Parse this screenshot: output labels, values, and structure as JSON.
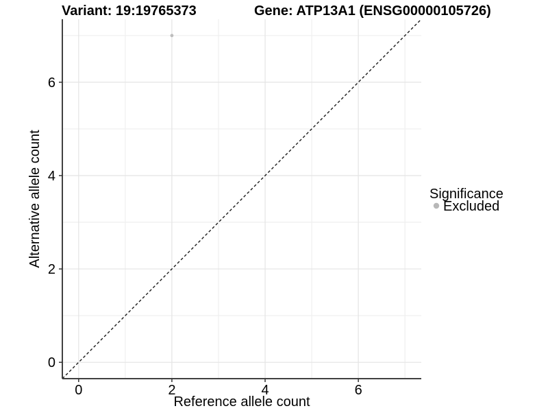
{
  "chart_data": {
    "type": "scatter",
    "titles": {
      "left": "Variant: 19:19765373",
      "right": "Gene: ATP13A1 (ENSG00000105726)"
    },
    "xlabel": "Reference allele count",
    "ylabel": "Alternative allele count",
    "xlim": [
      -0.35,
      7.35
    ],
    "ylim": [
      -0.35,
      7.35
    ],
    "x_ticks": [
      0,
      2,
      4,
      6
    ],
    "y_ticks": [
      0,
      2,
      4,
      6
    ],
    "x_minor_ticks": [
      1,
      3,
      5,
      7
    ],
    "y_minor_ticks": [
      1,
      3,
      5,
      7
    ],
    "grid": "major+minor",
    "points": [
      {
        "x": 2,
        "y": 7,
        "significance": "Excluded"
      }
    ],
    "identity_line": {
      "slope": 1,
      "intercept": 0,
      "style": "dashed"
    },
    "legend": {
      "title": "Significance",
      "position": "right",
      "entries": [
        {
          "label": "Excluded",
          "color": "#b8b8b8",
          "marker": "circle"
        }
      ]
    },
    "colors": {
      "point": "#bdbdbd",
      "grid_major": "#e4e4e4",
      "grid_minor": "#efefef",
      "axis": "#404040",
      "tick": "#333333",
      "identity_line": "#1a1a1a",
      "text": "#000000",
      "background": "#ffffff"
    }
  }
}
